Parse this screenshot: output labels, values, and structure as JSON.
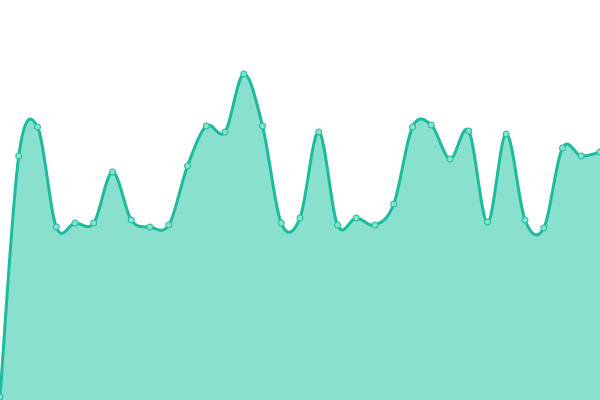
{
  "chart_data": {
    "type": "area",
    "title": "",
    "xlabel": "",
    "ylabel": "",
    "grid": false,
    "legend": "none",
    "smooth": true,
    "ylim": [
      0,
      400
    ],
    "x": [
      0,
      1,
      2,
      3,
      4,
      5,
      6,
      7,
      8,
      9,
      10,
      11,
      12,
      13,
      14,
      15,
      16,
      17,
      18,
      19,
      20,
      21,
      22,
      23,
      24,
      25,
      26,
      27,
      28,
      29,
      30,
      31,
      32
    ],
    "values": [
      3,
      244,
      273,
      173,
      177,
      177,
      228,
      180,
      173,
      175,
      234,
      274,
      268,
      326,
      274,
      177,
      182,
      268,
      175,
      182,
      175,
      196,
      273,
      275,
      241,
      269,
      178,
      266,
      180,
      172,
      252,
      244,
      248
    ],
    "colors": {
      "line": "#1abc9c",
      "fill": "#8ae0cf",
      "marker_fill": "#8ae0cf",
      "marker_stroke": "#1abc9c"
    }
  }
}
